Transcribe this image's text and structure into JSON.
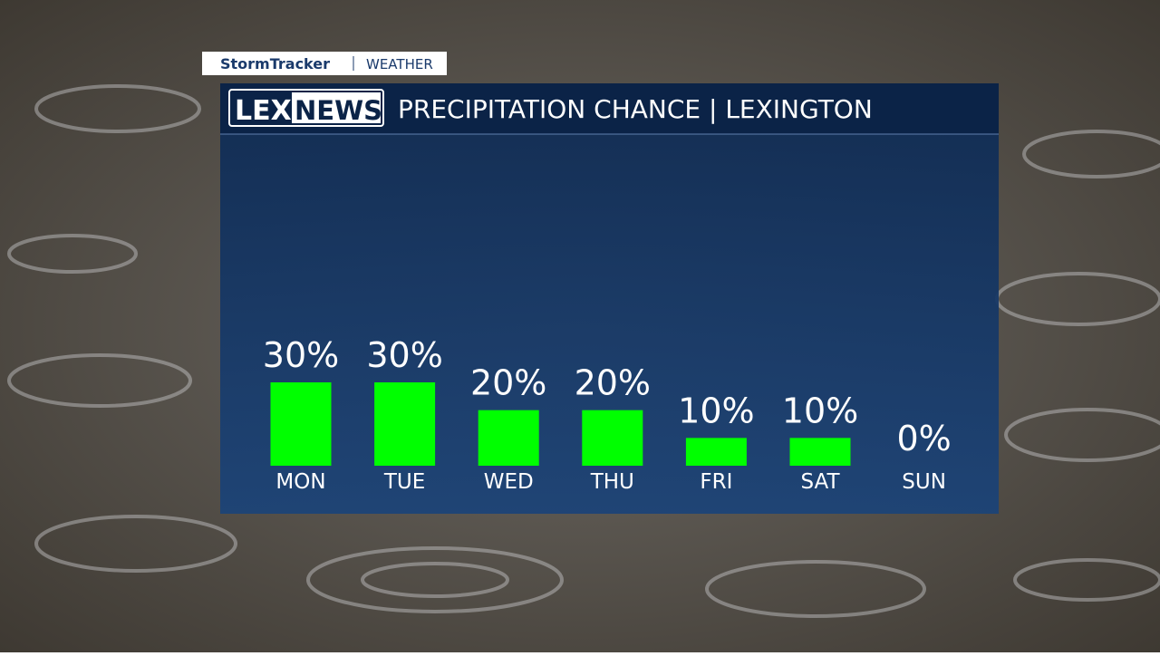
{
  "chart_data": {
    "type": "bar",
    "tag": [
      "StormTracker",
      "WEATHER"
    ],
    "logo": [
      "LEX",
      "NEWS"
    ],
    "title": "PRECIPITATION CHANCE | LEXINGTON",
    "categories": [
      "MON",
      "TUE",
      "WED",
      "THU",
      "FRI",
      "SAT",
      "SUN"
    ],
    "values": [
      30,
      30,
      20,
      20,
      10,
      10,
      0
    ],
    "value_labels": [
      "30%",
      "30%",
      "20%",
      "20%",
      "10%",
      "10%",
      "0%"
    ],
    "color": "#00ff00"
  }
}
